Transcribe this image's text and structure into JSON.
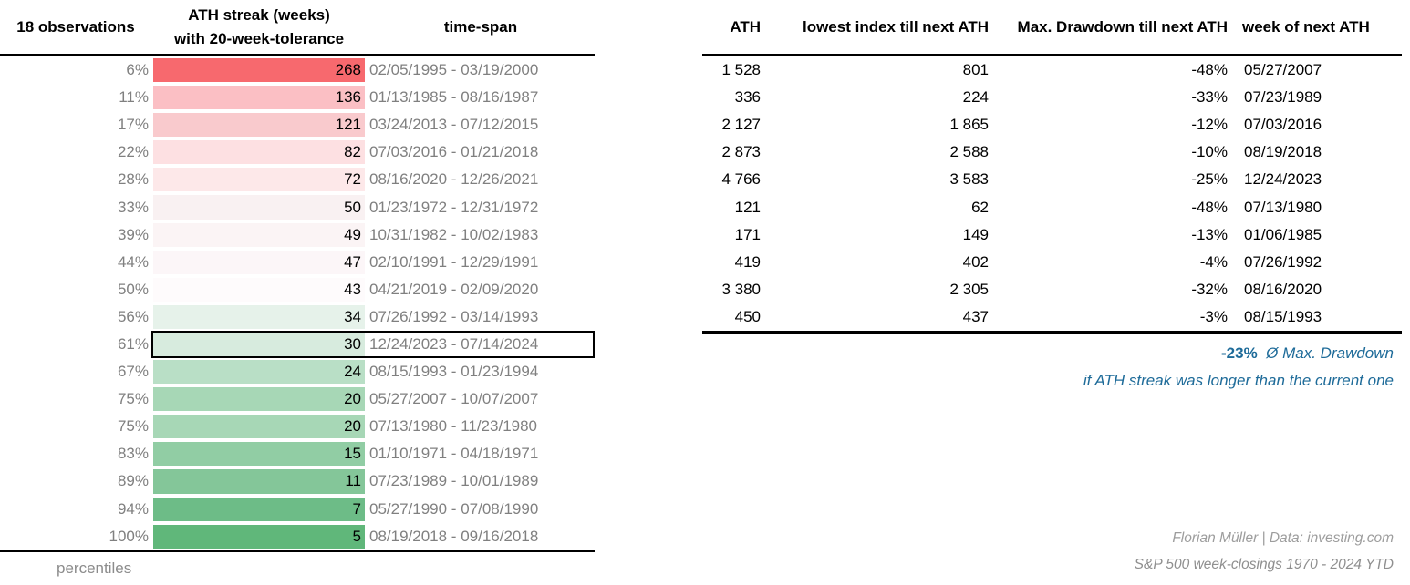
{
  "colors": {
    "summary_blue": "#1e6b99",
    "muted_gray": "#808080",
    "footer_gray": "#9d9d9d",
    "heat_max_red": "#f7696e",
    "heat_max_green": "#60b77a"
  },
  "left_table": {
    "header": {
      "observations": "18 observations",
      "streak_line1": "ATH streak (weeks)",
      "streak_line2": "with 20-week-tolerance",
      "timespan": "time-span"
    },
    "footer_label": "percentiles",
    "rows": [
      {
        "percentile": "6%",
        "streak": "268",
        "span": "02/05/1995 - 03/19/2000",
        "color": "#f7696e"
      },
      {
        "percentile": "11%",
        "streak": "136",
        "span": "01/13/1985 - 08/16/1987",
        "color": "#fbbfc4"
      },
      {
        "percentile": "17%",
        "streak": "121",
        "span": "03/24/2013 - 07/12/2015",
        "color": "#f9cacd"
      },
      {
        "percentile": "22%",
        "streak": "82",
        "span": "07/03/2016 - 01/21/2018",
        "color": "#fde0e2"
      },
      {
        "percentile": "28%",
        "streak": "72",
        "span": "08/16/2020 - 12/26/2021",
        "color": "#fde8e9"
      },
      {
        "percentile": "33%",
        "streak": "50",
        "span": "01/23/1972 - 12/31/1972",
        "color": "#f9f1f2"
      },
      {
        "percentile": "39%",
        "streak": "49",
        "span": "10/31/1982 - 10/02/1983",
        "color": "#fbf4f5"
      },
      {
        "percentile": "44%",
        "streak": "47",
        "span": "02/10/1991 - 12/29/1991",
        "color": "#fcf6f8"
      },
      {
        "percentile": "50%",
        "streak": "43",
        "span": "04/21/2019 - 02/09/2020",
        "color": "#fefbfc"
      },
      {
        "percentile": "56%",
        "streak": "34",
        "span": "07/26/1992 - 03/14/1993",
        "color": "#e6f2ea"
      },
      {
        "percentile": "61%",
        "streak": "30",
        "span": "12/24/2023 - 07/14/2024",
        "color": "#d7ebde",
        "highlight": true
      },
      {
        "percentile": "67%",
        "streak": "24",
        "span": "08/15/1993 - 01/23/1994",
        "color": "#b9dfc6"
      },
      {
        "percentile": "75%",
        "streak": "20",
        "span": "05/27/2007 - 10/07/2007",
        "color": "#a7d7b6"
      },
      {
        "percentile": "75%",
        "streak": "20",
        "span": "07/13/1980 - 11/23/1980",
        "color": "#a7d7b6"
      },
      {
        "percentile": "83%",
        "streak": "15",
        "span": "01/10/1971 - 04/18/1971",
        "color": "#91cda4"
      },
      {
        "percentile": "89%",
        "streak": "11",
        "span": "07/23/1989 - 10/01/1989",
        "color": "#84c699"
      },
      {
        "percentile": "94%",
        "streak": "7",
        "span": "05/27/1990 - 07/08/1990",
        "color": "#6dbc87"
      },
      {
        "percentile": "100%",
        "streak": "5",
        "span": "08/19/2018 - 09/16/2018",
        "color": "#60b77a"
      }
    ]
  },
  "right_table": {
    "header": {
      "ath": "ATH",
      "lowest": "lowest index till next ATH",
      "drawdown": "Max. Drawdown till next ATH",
      "week": "week of next ATH"
    },
    "rows": [
      {
        "ath": "1 528",
        "lowest": "801",
        "drawdown": "-48%",
        "week": "05/27/2007"
      },
      {
        "ath": "336",
        "lowest": "224",
        "drawdown": "-33%",
        "week": "07/23/1989"
      },
      {
        "ath": "2 127",
        "lowest": "1 865",
        "drawdown": "-12%",
        "week": "07/03/2016"
      },
      {
        "ath": "2 873",
        "lowest": "2 588",
        "drawdown": "-10%",
        "week": "08/19/2018"
      },
      {
        "ath": "4 766",
        "lowest": "3 583",
        "drawdown": "-25%",
        "week": "12/24/2023"
      },
      {
        "ath": "121",
        "lowest": "62",
        "drawdown": "-48%",
        "week": "07/13/1980"
      },
      {
        "ath": "171",
        "lowest": "149",
        "drawdown": "-13%",
        "week": "01/06/1985"
      },
      {
        "ath": "419",
        "lowest": "402",
        "drawdown": "-4%",
        "week": "07/26/1992"
      },
      {
        "ath": "3 380",
        "lowest": "2 305",
        "drawdown": "-32%",
        "week": "08/16/2020"
      },
      {
        "ath": "450",
        "lowest": "437",
        "drawdown": "-3%",
        "week": "08/15/1993"
      }
    ],
    "summary": {
      "value": "-23%",
      "label": "Ø Max. Drawdown",
      "note": "if ATH streak was longer than the current one"
    }
  },
  "footer": {
    "credit": "Florian Müller | Data: investing.com",
    "source": "S&P 500 week-closings 1970 - 2024 YTD"
  },
  "chart_data": [
    {
      "type": "table",
      "title": "ATH streak (weeks) with 20-week-tolerance — 18 observations (percentiles)",
      "columns": [
        "percentile",
        "ATH streak (weeks) with 20-week-tolerance",
        "time-span"
      ],
      "heatmap": "red (long streak) to green (short streak)",
      "rows": [
        [
          "6%",
          268,
          "02/05/1995 - 03/19/2000"
        ],
        [
          "11%",
          136,
          "01/13/1985 - 08/16/1987"
        ],
        [
          "17%",
          121,
          "03/24/2013 - 07/12/2015"
        ],
        [
          "22%",
          82,
          "07/03/2016 - 01/21/2018"
        ],
        [
          "28%",
          72,
          "08/16/2020 - 12/26/2021"
        ],
        [
          "33%",
          50,
          "01/23/1972 - 12/31/1972"
        ],
        [
          "39%",
          49,
          "10/31/1982 - 10/02/1983"
        ],
        [
          "44%",
          47,
          "02/10/1991 - 12/29/1991"
        ],
        [
          "50%",
          43,
          "04/21/2019 - 02/09/2020"
        ],
        [
          "56%",
          34,
          "07/26/1992 - 03/14/1993"
        ],
        [
          "61%",
          30,
          "12/24/2023 - 07/14/2024"
        ],
        [
          "67%",
          24,
          "08/15/1993 - 01/23/1994"
        ],
        [
          "75%",
          20,
          "05/27/2007 - 10/07/2007"
        ],
        [
          "75%",
          20,
          "07/13/1980 - 11/23/1980"
        ],
        [
          "83%",
          15,
          "01/10/1971 - 04/18/1971"
        ],
        [
          "89%",
          11,
          "07/23/1989 - 10/01/1989"
        ],
        [
          "94%",
          7,
          "05/27/1990 - 07/08/1990"
        ],
        [
          "100%",
          5,
          "08/19/2018 - 09/16/2018"
        ]
      ],
      "highlighted_row": [
        "61%",
        30,
        "12/24/2023 - 07/14/2024"
      ]
    },
    {
      "type": "table",
      "columns": [
        "ATH",
        "lowest index till next ATH",
        "Max. Drawdown till next ATH",
        "week of next ATH"
      ],
      "rows": [
        [
          1528,
          801,
          "-48%",
          "05/27/2007"
        ],
        [
          336,
          224,
          "-33%",
          "07/23/1989"
        ],
        [
          2127,
          1865,
          "-12%",
          "07/03/2016"
        ],
        [
          2873,
          2588,
          "-10%",
          "08/19/2018"
        ],
        [
          4766,
          3583,
          "-25%",
          "12/24/2023"
        ],
        [
          121,
          62,
          "-48%",
          "07/13/1980"
        ],
        [
          171,
          149,
          "-13%",
          "01/06/1985"
        ],
        [
          419,
          402,
          "-4%",
          "07/26/1992"
        ],
        [
          3380,
          2305,
          "-32%",
          "08/16/2020"
        ],
        [
          450,
          437,
          "-3%",
          "08/15/1993"
        ]
      ],
      "summary": "-23% Ø Max. Drawdown if ATH streak was longer than the current one",
      "annotations": [
        "Florian Müller | Data: investing.com",
        "S&P 500 week-closings 1970 - 2024 YTD"
      ]
    }
  ]
}
